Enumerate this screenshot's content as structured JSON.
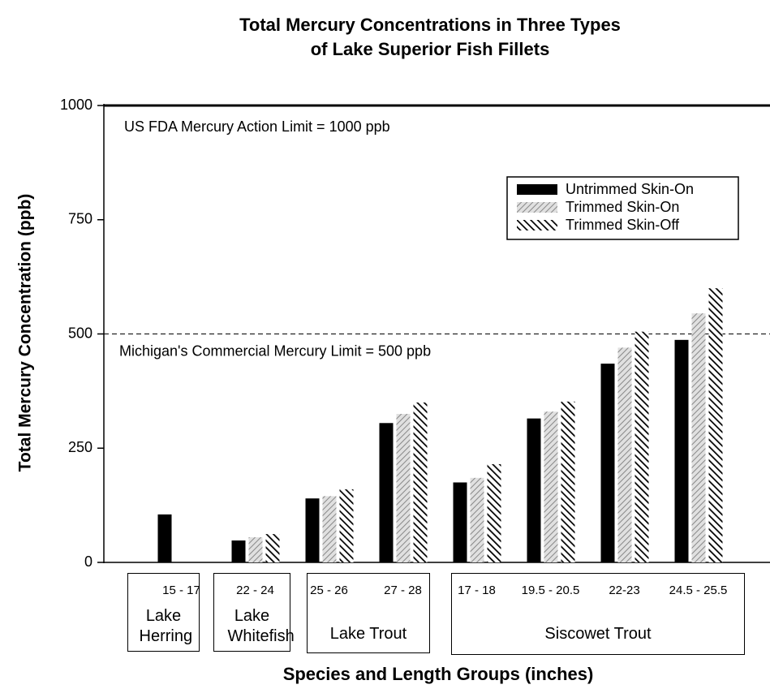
{
  "chart_data": {
    "type": "bar",
    "title": [
      "Total Mercury Concentrations in Three Types",
      "of Lake Superior Fish Fillets"
    ],
    "x_label": "Species and Length Groups (inches)",
    "y_label": "Total Mercury Concentration (ppb)",
    "groups": [
      {
        "name": "Lake Herring",
        "categories": [
          "15 - 17"
        ]
      },
      {
        "name": "Lake Whitefish",
        "categories": [
          "22 - 24"
        ]
      },
      {
        "name": "Lake Trout",
        "categories": [
          "25 - 26",
          "27 - 28"
        ]
      },
      {
        "name": "Siscowet Trout",
        "categories": [
          "17 - 18",
          "19.5 - 20.5",
          "22-23",
          "24.5 - 25.5"
        ]
      }
    ],
    "series": [
      {
        "name": "Untrimmed Skin-On",
        "color": "#000000",
        "pattern": "solid",
        "values": [
          105,
          48,
          140,
          305,
          175,
          315,
          435,
          487
        ]
      },
      {
        "name": "Trimmed Skin-On",
        "color": "#999999",
        "pattern": "light-hatch",
        "values": [
          null,
          55,
          145,
          325,
          185,
          330,
          470,
          545
        ]
      },
      {
        "name": "Trimmed Skin-Off",
        "color": "#000000",
        "pattern": "dark-hatch",
        "values": [
          null,
          62,
          160,
          350,
          215,
          352,
          505,
          600
        ]
      }
    ],
    "reference_lines": [
      {
        "value": 1000,
        "label": "US FDA Mercury Action Limit = 1000 ppb",
        "style": "solid"
      },
      {
        "value": 500,
        "label": "Michigan's Commercial Mercury Limit = 500 ppb",
        "style": "dashed"
      }
    ],
    "ylim": [
      0,
      1000
    ],
    "yticks": [
      0,
      250,
      500,
      750,
      1000
    ],
    "grid": false,
    "legend": "upper right"
  }
}
